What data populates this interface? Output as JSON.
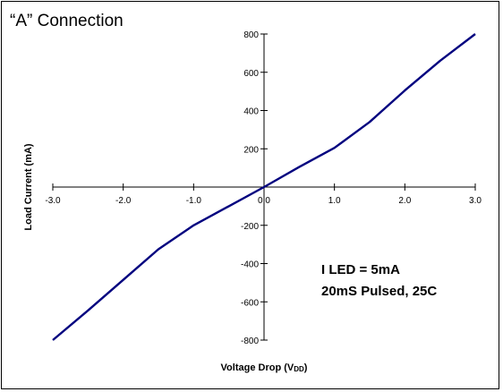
{
  "chart_data": {
    "type": "line",
    "title": "“A” Connection",
    "xlabel_main": "Voltage Drop (V",
    "xlabel_sub": "DD",
    "xlabel_end": ")",
    "ylabel": "Load Current (mA)",
    "xlim": [
      -3.0,
      3.0
    ],
    "ylim": [
      -800,
      800
    ],
    "x_ticks": [
      -3.0,
      -2.0,
      -1.0,
      0.0,
      1.0,
      2.0,
      3.0
    ],
    "x_tick_labels": [
      "-3.0",
      "-2.0",
      "-1.0",
      "0.0",
      "1.0",
      "2.0",
      "3.0"
    ],
    "y_ticks": [
      -800,
      -600,
      -400,
      -200,
      0,
      200,
      400,
      600,
      800
    ],
    "y_tick_labels": [
      "-800",
      "-600",
      "-400",
      "-200",
      "0",
      "200",
      "400",
      "600",
      "800"
    ],
    "series": [
      {
        "x": [
          -3.0,
          -2.5,
          -2.0,
          -1.5,
          -1.0,
          -0.5,
          0.0,
          0.5,
          1.0,
          1.5,
          2.0,
          2.5,
          3.0
        ],
        "y": [
          -800,
          -645,
          -485,
          -325,
          -200,
          -100,
          0,
          105,
          205,
          340,
          505,
          660,
          800
        ],
        "color": "#00007f"
      }
    ],
    "annotations": [
      "I LED = 5mA",
      "20mS Pulsed, 25C"
    ],
    "grid": false
  }
}
